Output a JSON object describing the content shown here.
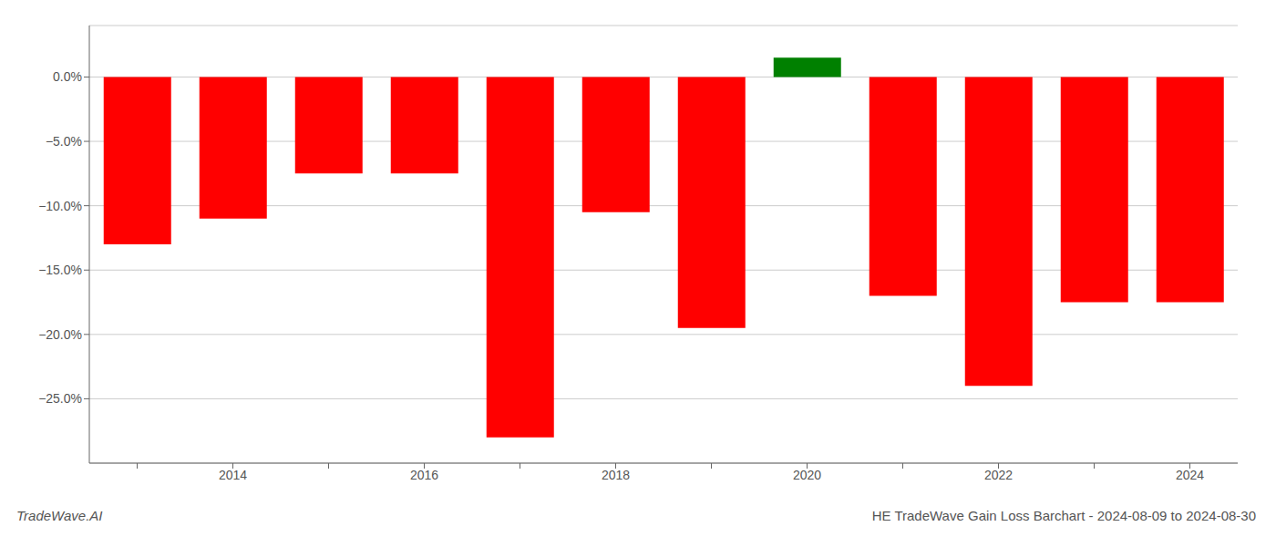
{
  "chart_data": {
    "type": "bar",
    "title": "HE TradeWave Gain Loss Barchart - 2024-08-09 to 2024-08-30",
    "annotations": [
      "TradeWave.AI"
    ],
    "categories": [
      null,
      "2014",
      null,
      "2016",
      null,
      "2018",
      null,
      "2020",
      null,
      "2022",
      null,
      "2024"
    ],
    "values": [
      -0.13,
      -0.11,
      -0.075,
      -0.075,
      -0.28,
      -0.105,
      -0.195,
      0.015,
      -0.17,
      -0.24,
      -0.175,
      -0.175
    ],
    "colors": [
      "#ff0000",
      "#ff0000",
      "#ff0000",
      "#ff0000",
      "#ff0000",
      "#ff0000",
      "#ff0000",
      "#008000",
      "#ff0000",
      "#ff0000",
      "#ff0000",
      "#ff0000"
    ],
    "ylim": [
      -0.3,
      0.04
    ],
    "yticks": [
      {
        "value": 0.0,
        "label": "0.0%"
      },
      {
        "value": -0.05,
        "label": "−5.0%"
      },
      {
        "value": -0.1,
        "label": "−10.0%"
      },
      {
        "value": -0.15,
        "label": "−15.0%"
      },
      {
        "value": -0.2,
        "label": "−20.0%"
      },
      {
        "value": -0.25,
        "label": "−25.0%"
      }
    ],
    "grid": true
  }
}
